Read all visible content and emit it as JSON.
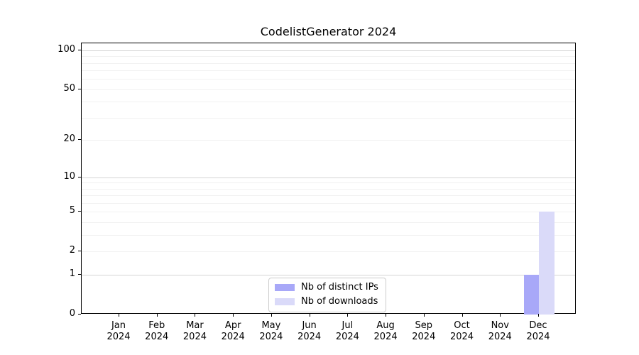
{
  "figure": {
    "title": "CodelistGenerator 2024"
  },
  "legend": {
    "items": [
      {
        "label": "Nb of distinct IPs"
      },
      {
        "label": "Nb of downloads"
      }
    ]
  },
  "colors": {
    "bar_distinct_ips": "#a8a8f8",
    "bar_downloads": "#dadaf9",
    "grid_major": "#d4d4d4",
    "grid_minor": "#f1f1f1",
    "spine": "#000000",
    "legend_border": "#cccccc"
  },
  "chart_data": {
    "type": "bar",
    "title": "CodelistGenerator 2024",
    "categories": [
      "Jan 2024",
      "Feb 2024",
      "Mar 2024",
      "Apr 2024",
      "May 2024",
      "Jun 2024",
      "Jul 2024",
      "Aug 2024",
      "Sep 2024",
      "Oct 2024",
      "Nov 2024",
      "Dec 2024"
    ],
    "series": [
      {
        "name": "Nb of distinct IPs",
        "color": "#a8a8f8",
        "values": [
          0,
          0,
          0,
          0,
          0,
          0,
          0,
          0,
          0,
          0,
          0,
          1
        ]
      },
      {
        "name": "Nb of downloads",
        "color": "#dadaf9",
        "values": [
          0,
          0,
          0,
          0,
          0,
          0,
          0,
          0,
          0,
          0,
          0,
          5
        ]
      }
    ],
    "y_axis": {
      "scale": "log1p",
      "tick_values": [
        0,
        1,
        2,
        5,
        10,
        20,
        50,
        100
      ],
      "major_gridlines": [
        1,
        10,
        100
      ],
      "minor_gridlines": [
        2,
        3,
        4,
        5,
        6,
        7,
        8,
        9,
        20,
        30,
        40,
        50,
        60,
        70,
        80,
        90
      ],
      "ylim": [
        0,
        113
      ]
    },
    "xlabel": "",
    "ylabel": "",
    "grid": true,
    "legend_position": "lower center inside"
  }
}
